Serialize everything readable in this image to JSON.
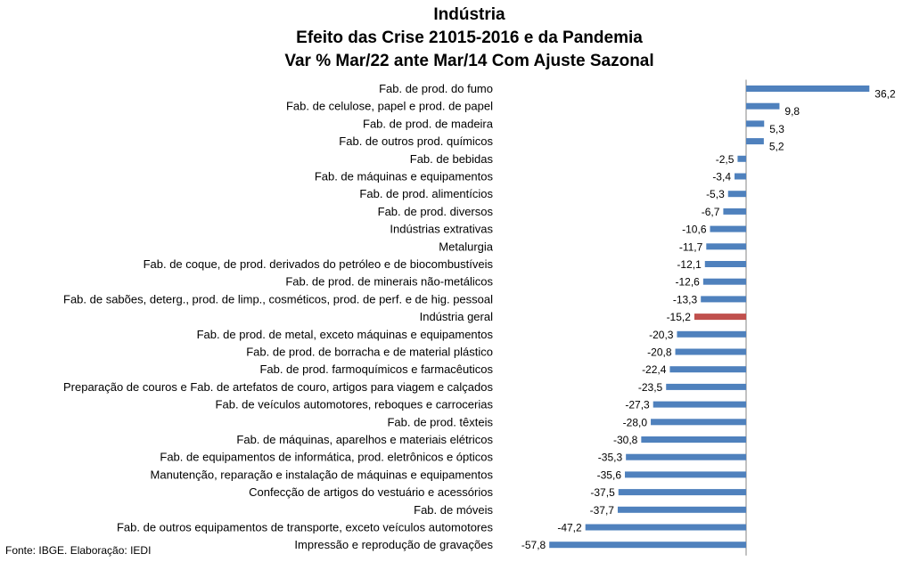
{
  "chart_data": {
    "type": "bar",
    "orientation": "horizontal",
    "title": [
      "Indústria",
      "Efeito das Crise 21015-2016 e da Pandemia",
      "Var % Mar/22 ante Mar/14 Com Ajuste Sazonal"
    ],
    "categories": [
      "Fab. de prod. do fumo",
      "Fab. de celulose, papel e prod. de papel",
      "Fab. de prod. de madeira",
      "Fab. de outros prod. químicos",
      "Fab. de bebidas",
      "Fab. de máquinas e equipamentos",
      "Fab. de prod. alimentícios",
      "Fab. de prod. diversos",
      "Indústrias extrativas",
      "Metalurgia",
      "Fab. de coque, de prod. derivados do petróleo e de biocombustíveis",
      "Fab. de prod. de minerais não-metálicos",
      "Fab. de sabões, deterg., prod. de limp., cosméticos, prod. de perf. e de hig. pessoal",
      "Indústria geral",
      "Fab. de prod. de metal, exceto máquinas e equipamentos",
      "Fab. de prod. de borracha e de material plástico",
      "Fab. de prod. farmoquímicos e farmacêuticos",
      "Preparação de couros e Fab. de artefatos de couro, artigos para viagem e calçados",
      "Fab. de veículos automotores, reboques e carrocerias",
      "Fab. de prod. têxteis",
      "Fab. de máquinas, aparelhos e materiais elétricos",
      "Fab. de equipamentos de informática, prod. eletrônicos e ópticos",
      "Manutenção, reparação e instalação de máquinas e equipamentos",
      "Confecção de artigos do vestuário e acessórios",
      "Fab. de móveis",
      "Fab. de outros equipamentos de transporte, exceto veículos automotores",
      "Impressão e reprodução de gravações"
    ],
    "values": [
      36.2,
      9.8,
      5.3,
      5.2,
      -2.5,
      -3.4,
      -5.3,
      -6.7,
      -10.6,
      -11.7,
      -12.1,
      -12.6,
      -13.3,
      -15.2,
      -20.3,
      -20.8,
      -22.4,
      -23.5,
      -27.3,
      -28.0,
      -30.8,
      -35.3,
      -35.6,
      -37.5,
      -37.7,
      -47.2,
      -57.8
    ],
    "value_labels": [
      "36,2",
      "9,8",
      "5,3",
      "5,2",
      "-2,5",
      "-3,4",
      "-5,3",
      "-6,7",
      "-10,6",
      "-11,7",
      "-12,1",
      "-12,6",
      "-13,3",
      "-15,2",
      "-20,3",
      "-20,8",
      "-22,4",
      "-23,5",
      "-27,3",
      "-28,0",
      "-30,8",
      "-35,3",
      "-35,6",
      "-37,5",
      "-37,7",
      "-47,2",
      "-57,8"
    ],
    "highlight_category": "Indústria geral",
    "colors": {
      "bar": "#4f81bd",
      "highlight": "#c0504d",
      "axis": "#868686"
    },
    "xlabel": "",
    "ylabel": "",
    "legend": "none",
    "grid": false,
    "source": "Fonte: IBGE. Elaboração: IEDI"
  }
}
